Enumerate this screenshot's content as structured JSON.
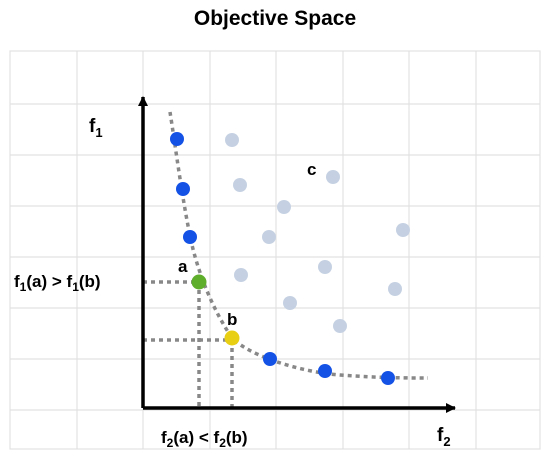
{
  "title": "Objective Space",
  "axes": {
    "vertical_label": "f",
    "vertical_sub": "1",
    "horizontal_label": "f",
    "horizontal_sub": "2"
  },
  "annotations": {
    "f1_compare": {
      "left_f": "f",
      "left_sub": "1",
      "left_arg": "(a) > ",
      "right_f": "f",
      "right_sub": "1",
      "right_arg": "(b)"
    },
    "f2_compare": {
      "left_f": "f",
      "left_sub": "2",
      "left_arg": "(a) < ",
      "right_f": "f",
      "right_sub": "2",
      "right_arg": "(b)"
    }
  },
  "point_labels": {
    "a": "a",
    "b": "b",
    "c": "c"
  },
  "colors": {
    "pareto_point": "#1452e6",
    "dominated_point": "#c5d1e2",
    "point_a": "#5fae2b",
    "point_b": "#e8cf14",
    "grid": "#e2e2e2",
    "dashed": "#888888",
    "axis": "#000000"
  }
}
